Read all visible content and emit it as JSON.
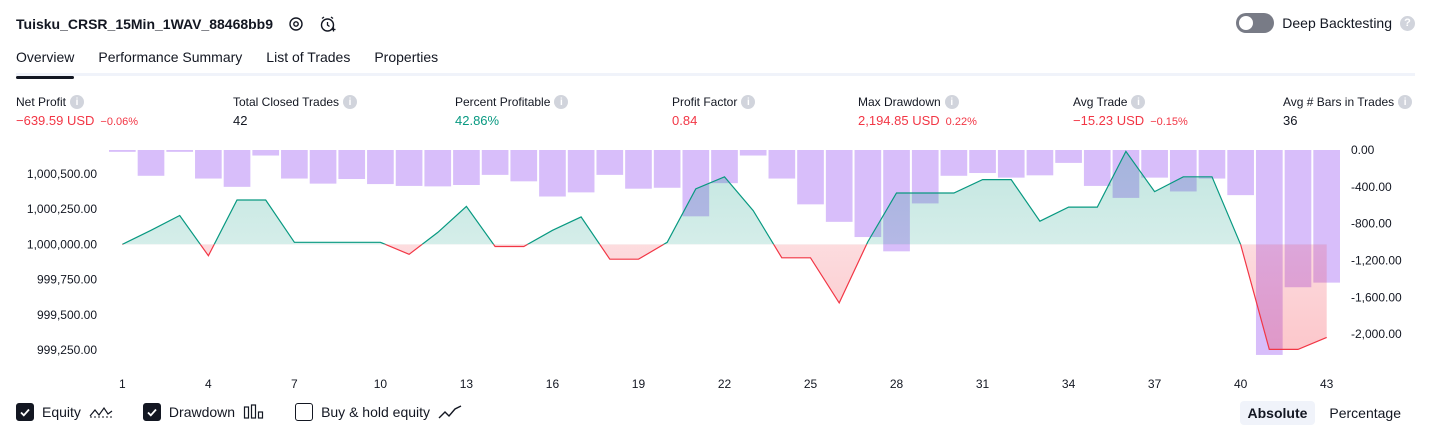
{
  "header": {
    "strategy_name": "Tuisku_CRSR_15Min_1WAV_88468bb9",
    "settings_icon": "gear-icon",
    "alert_icon": "add-alert-icon"
  },
  "deep_backtesting": {
    "label": "Deep Backtesting",
    "enabled": false,
    "help": "?"
  },
  "tabs": [
    {
      "label": "Overview",
      "active": true
    },
    {
      "label": "Performance Summary",
      "active": false
    },
    {
      "label": "List of Trades",
      "active": false
    },
    {
      "label": "Properties",
      "active": false
    }
  ],
  "metrics": [
    {
      "label": "Net Profit",
      "value": "−639.59 USD",
      "pct": "−0.06%",
      "tone": "neg"
    },
    {
      "label": "Total Closed Trades",
      "value": "42",
      "pct": "",
      "tone": "neu"
    },
    {
      "label": "Percent Profitable",
      "value": "42.86%",
      "pct": "",
      "tone": "pos"
    },
    {
      "label": "Profit Factor",
      "value": "0.84",
      "pct": "",
      "tone": "neg"
    },
    {
      "label": "Max Drawdown",
      "value": "2,194.85 USD",
      "pct": "0.22%",
      "tone": "neg"
    },
    {
      "label": "Avg Trade",
      "value": "−15.23 USD",
      "pct": "−0.15%",
      "tone": "neg"
    },
    {
      "label": "Avg # Bars in Trades",
      "value": "36",
      "pct": "",
      "tone": "neu"
    }
  ],
  "info_glyph": "i",
  "chart_data": {
    "type": "line",
    "x": [
      1,
      2,
      3,
      4,
      5,
      6,
      7,
      8,
      9,
      10,
      11,
      12,
      13,
      14,
      15,
      16,
      17,
      18,
      19,
      20,
      21,
      22,
      23,
      24,
      25,
      26,
      27,
      28,
      29,
      30,
      31,
      32,
      33,
      34,
      35,
      36,
      37,
      38,
      39,
      40,
      41,
      42,
      43
    ],
    "x_tick_labels": [
      "1",
      "4",
      "7",
      "10",
      "13",
      "16",
      "19",
      "22",
      "25",
      "28",
      "31",
      "34",
      "37",
      "40",
      "43"
    ],
    "left_axis": {
      "ticks": [
        "1,000,500.00",
        "1,000,250.00",
        "1,000,000.00",
        "999,750.00",
        "999,500.00",
        "999,250.00"
      ],
      "range": [
        999180,
        1000670
      ],
      "baseline": 1000000
    },
    "right_axis": {
      "ticks": [
        "0.00",
        "-400.00",
        "-800.00",
        "-1,200.00",
        "-1,600.00",
        "-2,000.00"
      ],
      "range": [
        -2280,
        0
      ]
    },
    "series": [
      {
        "role": "equity",
        "color_up": "#089981",
        "color_down": "#f23645",
        "values": [
          1000000,
          1000100,
          1000205,
          999920,
          1000315,
          1000315,
          1000015,
          1000015,
          1000015,
          1000015,
          999930,
          1000085,
          1000270,
          999985,
          999985,
          1000100,
          1000195,
          999895,
          999895,
          1000015,
          1000395,
          1000480,
          1000240,
          999905,
          999905,
          999585,
          1000020,
          1000365,
          1000365,
          1000365,
          1000460,
          1000460,
          1000165,
          1000265,
          1000265,
          1000660,
          1000375,
          1000480,
          1000480,
          1000000,
          999255,
          999255,
          999340
        ]
      },
      {
        "role": "drawdown",
        "color": "#d1b3f9",
        "values": [
          -20,
          -280,
          -20,
          -310,
          -400,
          -60,
          -310,
          -365,
          -315,
          -370,
          -390,
          -395,
          -380,
          -270,
          -340,
          -505,
          -460,
          -270,
          -420,
          -410,
          -720,
          -360,
          -60,
          -310,
          -590,
          -780,
          -945,
          -1100,
          -580,
          -280,
          -250,
          -300,
          -275,
          -140,
          -390,
          -520,
          -300,
          -450,
          -310,
          -490,
          -2225,
          -1490,
          -1440
        ]
      }
    ],
    "legend": [
      {
        "label": "Equity",
        "checked": true,
        "icon": "equity-line-icon"
      },
      {
        "label": "Drawdown",
        "checked": true,
        "icon": "drawdown-bars-icon"
      },
      {
        "label": "Buy & hold equity",
        "checked": false,
        "icon": "buy-hold-line-icon"
      }
    ]
  },
  "mode_switch": [
    {
      "label": "Absolute",
      "active": true
    },
    {
      "label": "Percentage",
      "active": false
    }
  ]
}
